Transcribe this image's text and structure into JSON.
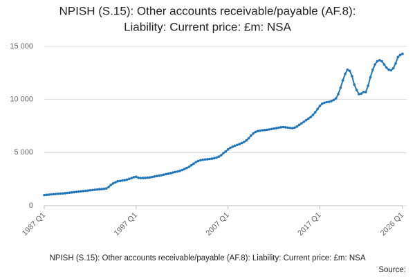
{
  "chart_data": {
    "type": "line",
    "title": [
      "NPISH (S.15): Other accounts receivable/payable (AF.8):",
      "Liability: Current price: £m: NSA"
    ],
    "footer": "NPISH (S.15): Other accounts receivable/payable (AF.8): Liability: Current price: £m: NSA",
    "source": "Source:",
    "categories": [
      "1987 Q1",
      null,
      null,
      null,
      null,
      null,
      null,
      null,
      null,
      null,
      null,
      null,
      null,
      null,
      null,
      null,
      null,
      null,
      null,
      null,
      null,
      null,
      null,
      null,
      null,
      null,
      null,
      null,
      null,
      null,
      null,
      null,
      null,
      null,
      null,
      null,
      null,
      null,
      null,
      null,
      "1997 Q1",
      null,
      null,
      null,
      null,
      null,
      null,
      null,
      null,
      null,
      null,
      null,
      null,
      null,
      null,
      null,
      null,
      null,
      null,
      null,
      null,
      null,
      null,
      null,
      null,
      null,
      null,
      null,
      null,
      null,
      null,
      null,
      null,
      null,
      null,
      null,
      null,
      null,
      null,
      null,
      "2007 Q1",
      null,
      null,
      null,
      null,
      null,
      null,
      null,
      null,
      null,
      null,
      null,
      null,
      null,
      null,
      null,
      null,
      null,
      null,
      null,
      null,
      null,
      null,
      null,
      null,
      null,
      null,
      null,
      null,
      null,
      null,
      null,
      null,
      null,
      null,
      null,
      null,
      null,
      null,
      null,
      "2017 Q1",
      null,
      null,
      null,
      null,
      null,
      null,
      null,
      null,
      null,
      null,
      null,
      null,
      null,
      null,
      null,
      null,
      null,
      null,
      null,
      null,
      null,
      null,
      null,
      null,
      null,
      null,
      null,
      null,
      null,
      null,
      null,
      null,
      null,
      null,
      null,
      "2026 Q1"
    ],
    "series": [
      {
        "color": "#1f75b9",
        "values": [
          1000,
          1020,
          1040,
          1060,
          1080,
          1100,
          1120,
          1135,
          1150,
          1175,
          1200,
          1225,
          1250,
          1275,
          1300,
          1325,
          1350,
          1375,
          1400,
          1425,
          1450,
          1475,
          1500,
          1525,
          1550,
          1560,
          1580,
          1620,
          1750,
          1950,
          2100,
          2200,
          2300,
          2330,
          2370,
          2400,
          2450,
          2520,
          2600,
          2680,
          2720,
          2620,
          2600,
          2610,
          2620,
          2640,
          2660,
          2700,
          2750,
          2790,
          2830,
          2870,
          2920,
          2970,
          3010,
          3060,
          3120,
          3170,
          3220,
          3280,
          3350,
          3450,
          3550,
          3650,
          3800,
          3950,
          4100,
          4200,
          4280,
          4320,
          4350,
          4370,
          4400,
          4430,
          4470,
          4530,
          4620,
          4750,
          4950,
          5100,
          5300,
          5450,
          5550,
          5650,
          5720,
          5800,
          5900,
          6000,
          6150,
          6350,
          6600,
          6800,
          6950,
          7020,
          7060,
          7100,
          7120,
          7150,
          7180,
          7220,
          7260,
          7300,
          7340,
          7380,
          7400,
          7380,
          7350,
          7320,
          7300,
          7350,
          7450,
          7600,
          7750,
          7900,
          8050,
          8200,
          8350,
          8550,
          8800,
          9100,
          9400,
          9600,
          9700,
          9750,
          9780,
          9850,
          9950,
          10100,
          10500,
          11100,
          11800,
          12400,
          12800,
          12700,
          12200,
          11400,
          10900,
          10500,
          10550,
          10700,
          10700,
          11300,
          12100,
          12800,
          13300,
          13600,
          13700,
          13600,
          13300,
          13000,
          12800,
          12750,
          12950,
          13400,
          14000,
          14200,
          14300
        ]
      }
    ],
    "ylim": [
      0,
      15000
    ],
    "yticks": [
      0,
      {
        "value": 5000,
        "label": "5 000"
      },
      {
        "value": 10000,
        "label": "10 000"
      },
      {
        "value": 15000,
        "label": "15 000"
      }
    ],
    "grid": true
  }
}
